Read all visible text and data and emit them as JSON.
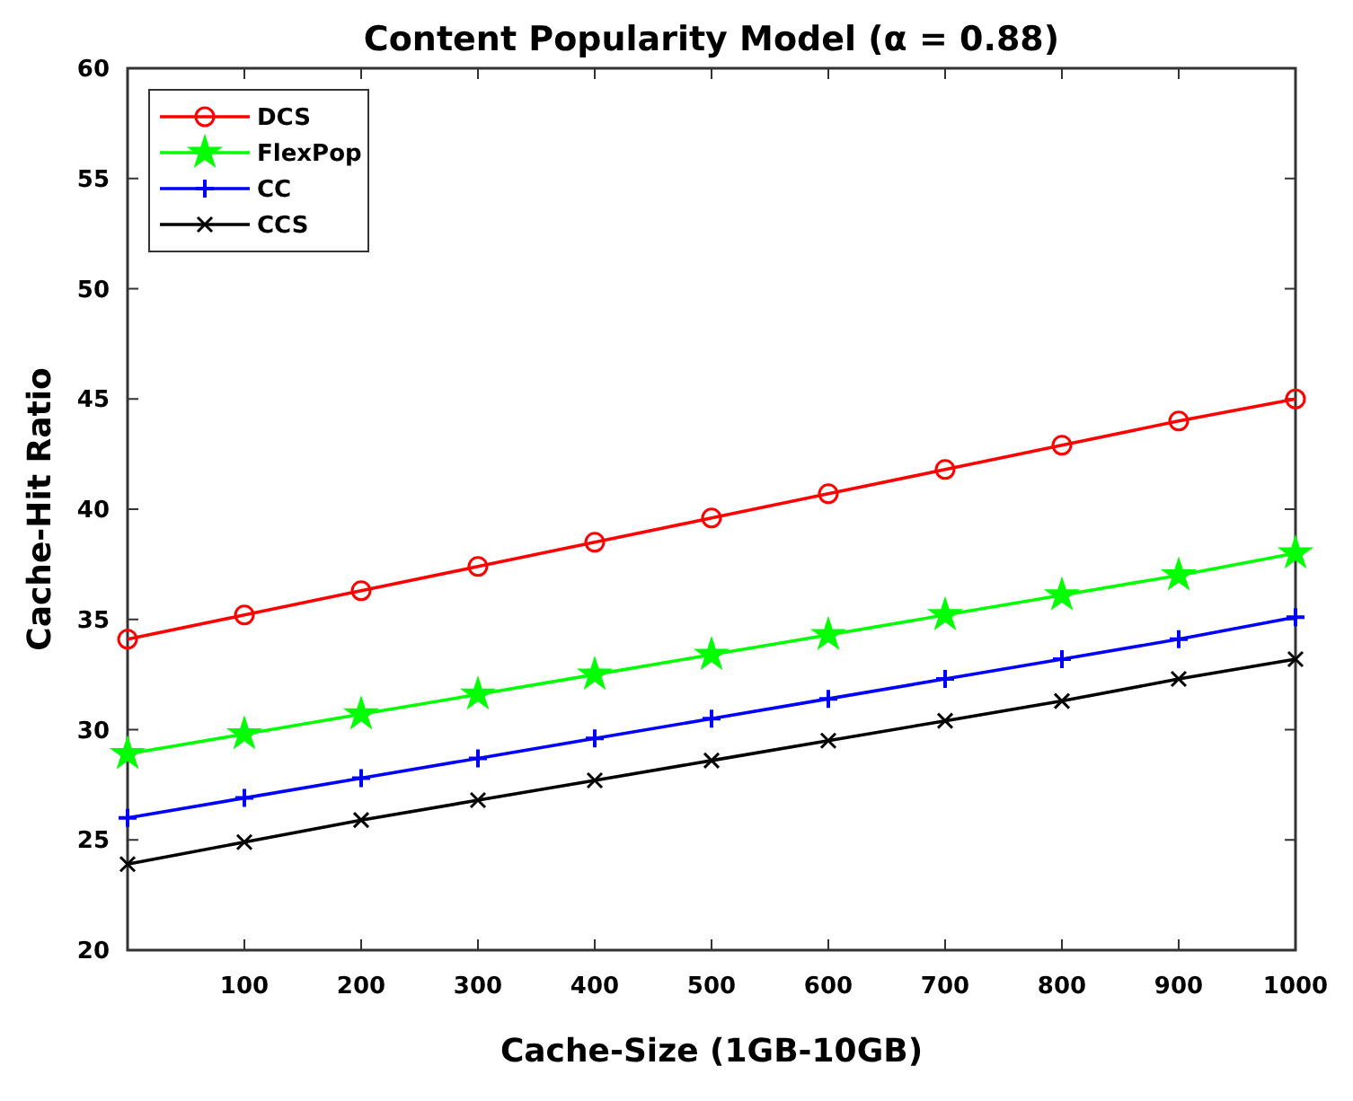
{
  "chart_data": {
    "type": "line",
    "title": "Content Popularity Model (α = 0.88)",
    "xlabel": "Cache-Size (1GB-10GB)",
    "ylabel": "Cache-Hit Ratio",
    "x": [
      0,
      100,
      200,
      300,
      400,
      500,
      600,
      700,
      800,
      900,
      1000
    ],
    "xlim": [
      0,
      1000
    ],
    "xticks": [
      100,
      200,
      300,
      400,
      500,
      600,
      700,
      800,
      900,
      1000
    ],
    "ylim": [
      20,
      60
    ],
    "yticks": [
      20,
      25,
      30,
      35,
      40,
      45,
      50,
      55,
      60
    ],
    "grid": false,
    "legend": "top left",
    "line_style": "solid",
    "series": [
      {
        "name": "DCS",
        "color": "#ff0000",
        "marker": "circle",
        "values": [
          34.1,
          35.2,
          36.3,
          37.4,
          38.5,
          39.6,
          40.7,
          41.8,
          42.9,
          44.0,
          45.0
        ]
      },
      {
        "name": "FlexPop",
        "color": "#00ff00",
        "marker": "star",
        "values": [
          28.9,
          29.8,
          30.7,
          31.6,
          32.5,
          33.4,
          34.3,
          35.2,
          36.1,
          37.0,
          38.0
        ]
      },
      {
        "name": "CC",
        "color": "#0000ff",
        "marker": "cross",
        "values": [
          26.0,
          26.9,
          27.8,
          28.7,
          29.6,
          30.5,
          31.4,
          32.3,
          33.2,
          34.1,
          35.1
        ]
      },
      {
        "name": "CCS",
        "color": "#000000",
        "marker": "x",
        "values": [
          23.9,
          24.9,
          25.9,
          26.8,
          27.7,
          28.6,
          29.5,
          30.4,
          31.3,
          32.3,
          33.2
        ]
      }
    ]
  }
}
